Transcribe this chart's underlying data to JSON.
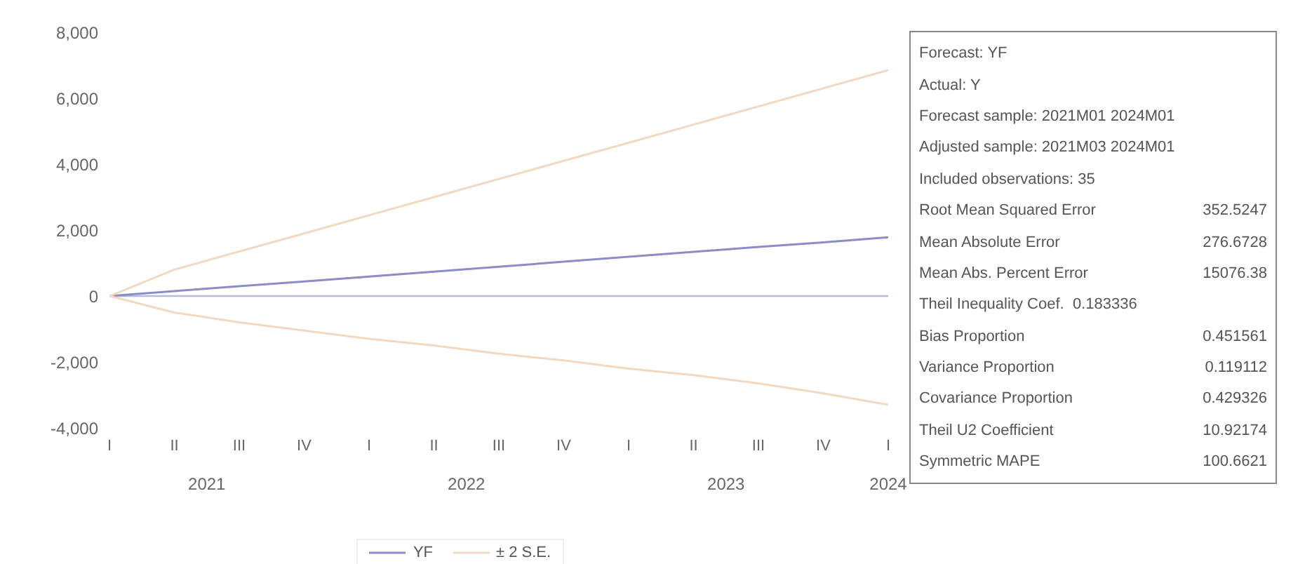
{
  "chart_data": [
    {
      "type": "line",
      "categories": [
        "I",
        "II",
        "III",
        "IV",
        "I",
        "II",
        "III",
        "IV",
        "I",
        "II",
        "III",
        "IV",
        "I"
      ],
      "series": [
        {
          "name": "YF",
          "color": "#8c8cc8",
          "values": [
            0,
            150,
            300,
            440,
            590,
            740,
            890,
            1040,
            1190,
            1340,
            1490,
            1630,
            1780
          ]
        },
        {
          "name": "± 2 S.E.",
          "color": "#f3d9c2",
          "values": [
            0,
            800,
            1350,
            1900,
            2450,
            3000,
            3550,
            4100,
            4650,
            5200,
            5750,
            6300,
            6850
          ]
        },
        {
          "color": "#f3d9c2",
          "values": [
            0,
            -500,
            -800,
            -1050,
            -1300,
            -1500,
            -1750,
            -1950,
            -2200,
            -2400,
            -2650,
            -2950,
            -3300
          ]
        }
      ],
      "ylim": [
        -4000,
        8000
      ],
      "yticks": [
        {
          "value": -4000,
          "label": "-4,000"
        },
        {
          "value": -2000,
          "label": "-2,000"
        },
        0,
        {
          "value": 2000,
          "label": "2,000"
        },
        {
          "value": 4000,
          "label": "4,000"
        },
        {
          "value": 6000,
          "label": "6,000"
        },
        {
          "value": 8000,
          "label": "8,000"
        }
      ],
      "ref_lines": [
        {
          "axis": "y",
          "value": 0,
          "color": "#b4bcd8"
        }
      ],
      "annotations": [
        "2021",
        "2022",
        "2023",
        "2024"
      ],
      "grid": false,
      "legend": "bottom",
      "marker": "none",
      "line_style": "solid"
    },
    {
      "type": "other",
      "categories": [
        "Forecast: YF",
        "Actual: Y",
        "Forecast sample: 2021M01 2024M01",
        "Adjusted sample: 2021M03 2024M01",
        "Included observations: 35",
        "Root Mean Squared Error",
        "Mean Absolute Error",
        "Mean Abs. Percent Error",
        "Theil Inequality Coef.  0.183336",
        "Bias Proportion",
        "Variance Proportion",
        "Covariance Proportion",
        "Theil U2 Coefficient",
        "Symmetric MAPE"
      ],
      "value_labels": [
        null,
        null,
        null,
        null,
        null,
        "352.5247",
        "276.6728",
        "15076.38",
        null,
        "0.451561",
        "0.119112",
        "0.429326",
        "10.92174",
        "100.6621"
      ]
    }
  ]
}
